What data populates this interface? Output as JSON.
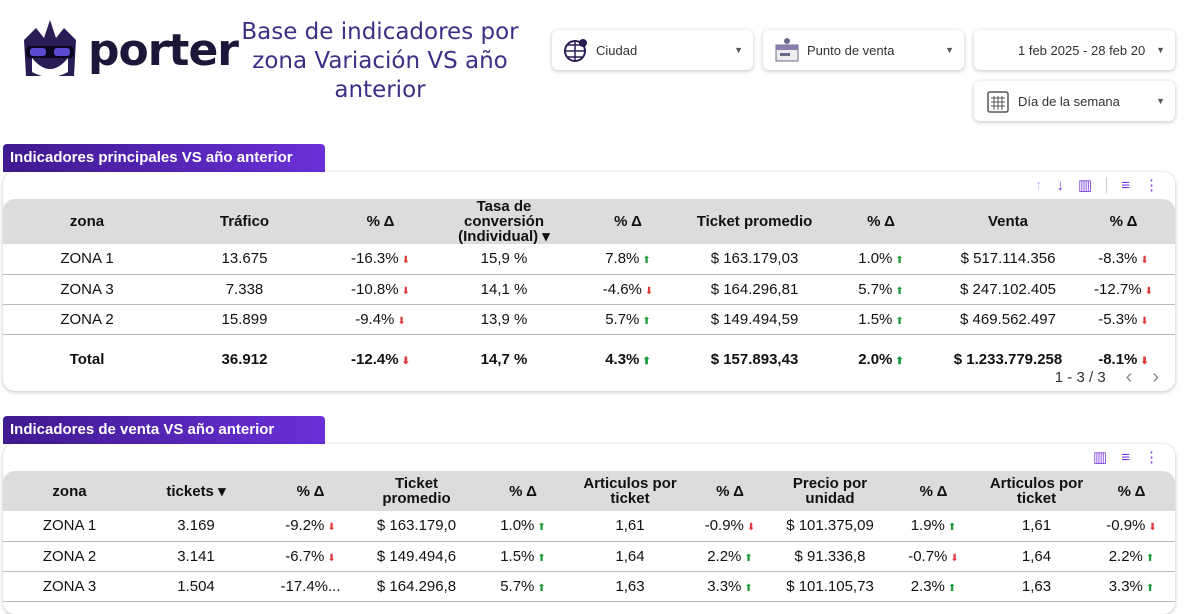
{
  "header": {
    "logo_text": "porter",
    "title": "Base de indicadores por zona  Variación VS año anterior"
  },
  "filters": {
    "ciudad": "Ciudad",
    "punto_venta": "Punto de venta",
    "fecha": "1 feb 2025 - 28 feb 20",
    "dia_semana": "Día de la semana"
  },
  "colors": {
    "accent": "#6a30d8",
    "up": "#1e9a3a",
    "down": "#e03c3c",
    "title": "#3d2f85"
  },
  "table1": {
    "title": "Indicadores principales VS año anterior",
    "columns": [
      "zona",
      "Tráfico",
      "% Δ",
      "Tasa de conversión (Individual) ▾",
      "% Δ",
      "Ticket promedio",
      "% Δ",
      "Venta",
      "% Δ"
    ],
    "rows": [
      [
        "ZONA 1",
        "13.675",
        [
          "-16.3%",
          "down"
        ],
        "15,9 %",
        [
          "7.8%",
          "up"
        ],
        "$ 163.179,03",
        [
          "1.0%",
          "up"
        ],
        "$ 517.114.356",
        [
          "-8.3%",
          "down"
        ]
      ],
      [
        "ZONA 3",
        "7.338",
        [
          "-10.8%",
          "down"
        ],
        "14,1 %",
        [
          "-4.6%",
          "down"
        ],
        "$ 164.296,81",
        [
          "5.7%",
          "up"
        ],
        "$ 247.102.405",
        [
          "-12.7%",
          "down"
        ]
      ],
      [
        "ZONA 2",
        "15.899",
        [
          "-9.4%",
          "down"
        ],
        "13,9 %",
        [
          "5.7%",
          "up"
        ],
        "$ 149.494,59",
        [
          "1.5%",
          "up"
        ],
        "$ 469.562.497",
        [
          "-5.3%",
          "down"
        ]
      ]
    ],
    "total": [
      "Total",
      "36.912",
      [
        "-12.4%",
        "down"
      ],
      "14,7 %",
      [
        "4.3%",
        "up"
      ],
      "$ 157.893,43",
      [
        "2.0%",
        "up"
      ],
      "$ 1.233.779.258",
      [
        "-8.1%",
        "down"
      ]
    ],
    "pagination": "1 - 3 / 3"
  },
  "table2": {
    "title": "Indicadores de venta VS año anterior",
    "columns": [
      "zona",
      "tickets ▾",
      "% Δ",
      "Ticket promedio",
      "% Δ",
      "Articulos por ticket",
      "% Δ",
      "Precio por unidad",
      "% Δ",
      "Articulos por ticket",
      "% Δ"
    ],
    "rows": [
      [
        "ZONA 1",
        "3.169",
        [
          "-9.2%",
          "down"
        ],
        "$ 163.179,0",
        [
          "1.0%",
          "up"
        ],
        "1,61",
        [
          "-0.9%",
          "down"
        ],
        "$ 101.375,09",
        [
          "1.9%",
          "up"
        ],
        "1,61",
        [
          "-0.9%",
          "down"
        ]
      ],
      [
        "ZONA 2",
        "3.141",
        [
          "-6.7%",
          "down"
        ],
        "$ 149.494,6",
        [
          "1.5%",
          "up"
        ],
        "1,64",
        [
          "2.2%",
          "up"
        ],
        "$ 91.336,8",
        [
          "-0.7%",
          "down"
        ],
        "1,64",
        [
          "2.2%",
          "up"
        ]
      ],
      [
        "ZONA 3",
        "1.504",
        [
          "-17.4%...",
          ""
        ],
        "$ 164.296,8",
        [
          "5.7%",
          "up"
        ],
        "1,63",
        [
          "3.3%",
          "up"
        ],
        "$ 101.105,73",
        [
          "2.3%",
          "up"
        ],
        "1,63",
        [
          "3.3%",
          "up"
        ]
      ]
    ]
  }
}
